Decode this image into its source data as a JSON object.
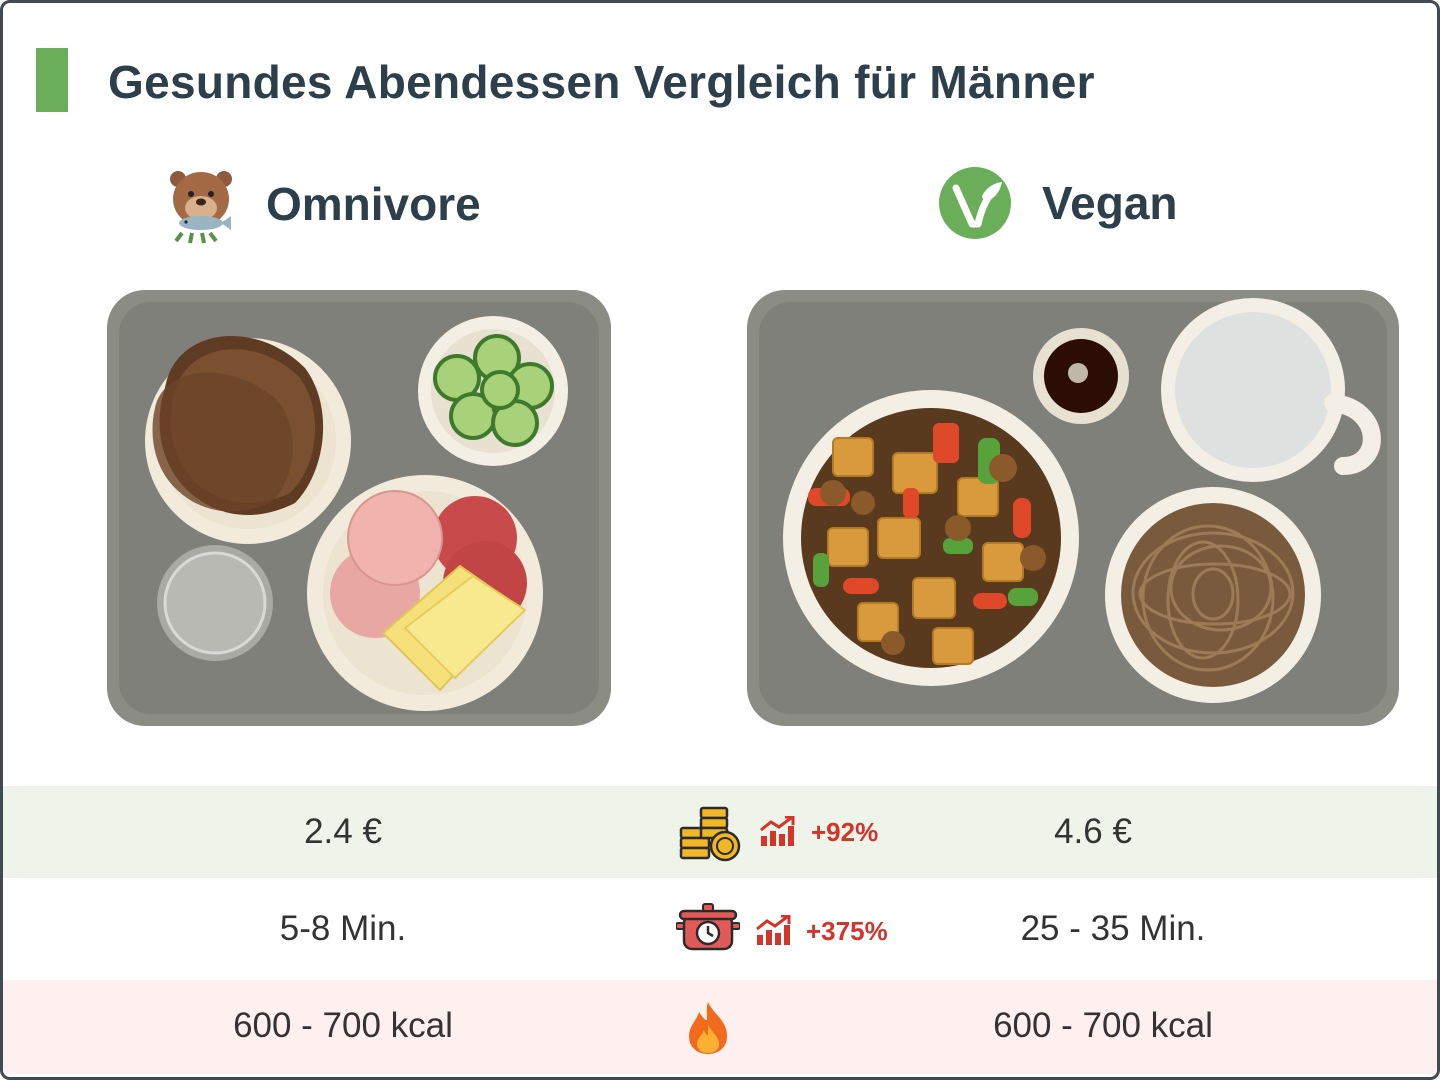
{
  "header": {
    "title": "Gesundes Abendessen Vergleich für Männer"
  },
  "columns": {
    "left": {
      "label": "Omnivore",
      "icon": "beaver-fish-icon"
    },
    "right": {
      "label": "Vegan",
      "icon": "vegan-leaf-icon"
    }
  },
  "rows": [
    {
      "name": "cost",
      "icon": "coins-icon",
      "left": "2.4 €",
      "right": "4.6 €",
      "change": "+92%",
      "trend_icon": "trend-up-icon"
    },
    {
      "name": "time",
      "icon": "cooking-pot-timer-icon",
      "left": "5-8 Min.",
      "right": "25 - 35 Min.",
      "change": "+375%",
      "trend_icon": "trend-up-icon"
    },
    {
      "name": "calories",
      "icon": "flame-icon",
      "left": "600 - 700 kcal",
      "right": "600 - 700 kcal"
    }
  ],
  "colors": {
    "accent": "#6aae5a",
    "text": "#2e3f4c",
    "increase": "#d1352c",
    "row_green": "#eef4ea",
    "row_red": "#fdf0ef",
    "tray": "#8b8c84"
  }
}
